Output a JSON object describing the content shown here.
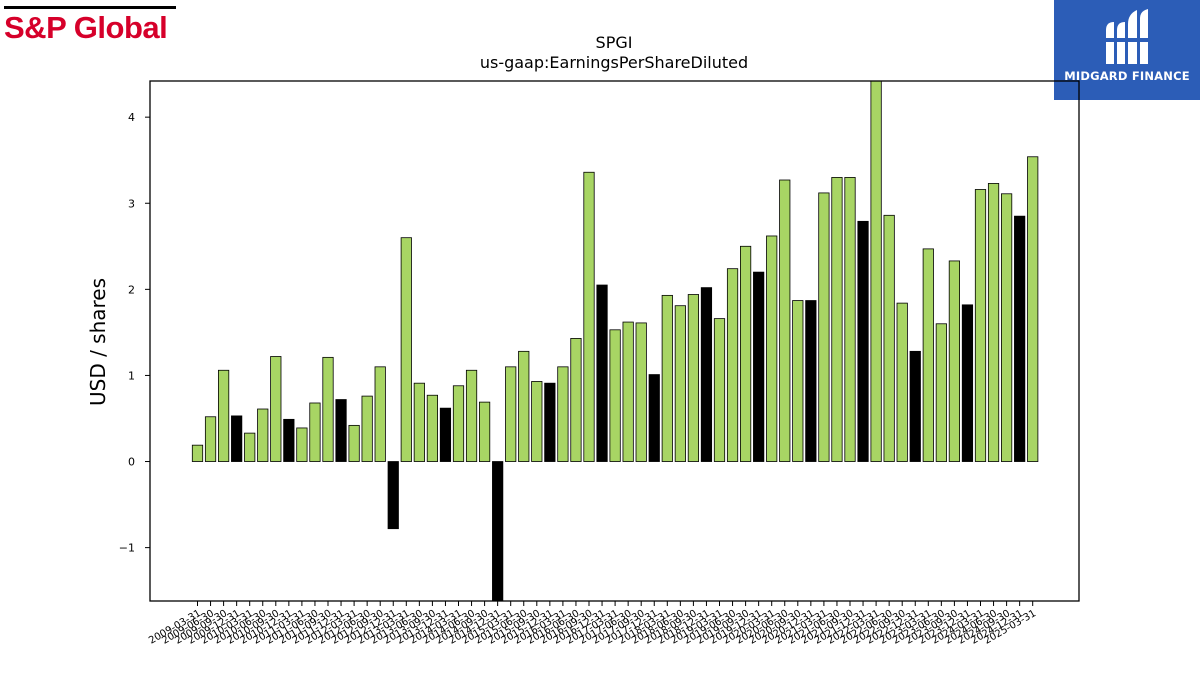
{
  "branding": {
    "left_logo_text": "S&P Global",
    "right_logo_text": "MIDGARD FINANCE",
    "left_color": "#d6002a",
    "right_bg": "#2c5db7"
  },
  "chart_data": {
    "type": "bar",
    "title": "SPGI",
    "subtitle": "us-gaap:EarningsPerShareDiluted",
    "ylabel": "USD / shares",
    "xlabel": "",
    "ylim": [
      -1.62,
      4.42
    ],
    "yticks": [
      -1,
      0,
      1,
      2,
      3,
      4
    ],
    "grid": false,
    "colors": {
      "quarter": "#a8d564",
      "annual": "#000000",
      "edge": "#000000"
    },
    "categories": [
      "2009-03-31",
      "2009-06-30",
      "2009-09-30",
      "2009-12-31",
      "2010-03-31",
      "2010-06-30",
      "2010-09-30",
      "2010-12-31",
      "2011-03-31",
      "2011-06-30",
      "2011-09-30",
      "2011-12-31",
      "2012-03-31",
      "2012-06-30",
      "2012-09-30",
      "2012-12-31",
      "2013-03-31",
      "2013-06-30",
      "2013-09-30",
      "2013-12-31",
      "2014-03-31",
      "2014-06-30",
      "2014-09-30",
      "2014-12-31",
      "2015-03-31",
      "2015-06-30",
      "2015-09-30",
      "2015-12-31",
      "2016-03-31",
      "2016-06-30",
      "2016-09-30",
      "2016-12-31",
      "2017-03-31",
      "2017-06-30",
      "2017-09-30",
      "2017-12-31",
      "2018-03-31",
      "2018-06-30",
      "2018-09-30",
      "2018-12-31",
      "2019-03-31",
      "2019-06-30",
      "2019-09-30",
      "2019-12-31",
      "2020-03-31",
      "2020-06-30",
      "2020-09-30",
      "2020-12-31",
      "2021-03-31",
      "2021-06-30",
      "2021-09-30",
      "2021-12-31",
      "2022-03-31",
      "2022-06-30",
      "2022-09-30",
      "2022-12-31",
      "2023-03-31",
      "2023-06-30",
      "2023-09-30",
      "2023-12-31",
      "2024-03-31",
      "2024-06-30",
      "2024-09-30",
      "2024-12-31",
      "2025-03-31"
    ],
    "values": [
      0.19,
      0.52,
      1.06,
      0.53,
      0.33,
      0.61,
      1.22,
      0.49,
      0.39,
      0.68,
      1.21,
      0.72,
      0.42,
      0.76,
      1.1,
      -0.78,
      2.6,
      0.91,
      0.77,
      0.62,
      0.88,
      1.06,
      0.69,
      -1.62,
      1.1,
      1.28,
      0.93,
      0.91,
      1.1,
      1.43,
      3.36,
      2.05,
      1.53,
      1.62,
      1.61,
      1.01,
      1.93,
      1.81,
      1.94,
      2.02,
      1.66,
      2.24,
      2.5,
      2.2,
      2.62,
      3.27,
      1.87,
      1.87,
      3.12,
      3.3,
      3.3,
      2.79,
      4.42,
      2.86,
      1.84,
      1.28,
      2.47,
      1.6,
      2.33,
      1.82,
      3.16,
      3.23,
      3.11,
      2.85,
      3.54
    ],
    "annual_flags": [
      0,
      0,
      0,
      1,
      0,
      0,
      0,
      1,
      0,
      0,
      0,
      1,
      0,
      0,
      0,
      1,
      0,
      0,
      0,
      1,
      0,
      0,
      0,
      1,
      0,
      0,
      0,
      1,
      0,
      0,
      0,
      1,
      0,
      0,
      0,
      1,
      0,
      0,
      0,
      1,
      0,
      0,
      0,
      1,
      0,
      0,
      0,
      1,
      0,
      0,
      0,
      1,
      0,
      0,
      0,
      1,
      0,
      0,
      0,
      1,
      0,
      0,
      0,
      1,
      0
    ]
  }
}
